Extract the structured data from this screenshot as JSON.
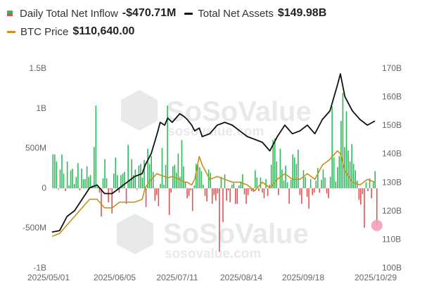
{
  "legend": {
    "inflow_label": "Daily Total Net Inflow",
    "inflow_value": "-$470.71M",
    "assets_label": "Total Net Assets",
    "assets_value": "$149.98B",
    "btc_label": "BTC Price",
    "btc_value": "$110,640.00"
  },
  "watermark": {
    "brand": "SoSoValue",
    "site": "sosovalue.com"
  },
  "colors": {
    "inflow_pos": "#2fb85a",
    "inflow_neg": "#e0504f",
    "assets": "#111111",
    "btc": "#c8901a",
    "highlight": "#f4a0b8"
  },
  "chart_data": {
    "type": "bar",
    "title": "",
    "xlabel": "",
    "ylabel": "",
    "x_ticks": [
      "2025/05/01",
      "2025/06/05",
      "2025/07/11",
      "2025/08/14",
      "2025/09/18",
      "2025/10/29"
    ],
    "left_ticks": [
      "1.5B",
      "1B",
      "500M",
      "0",
      "-500M",
      "-1B"
    ],
    "right_ticks": [
      "170B",
      "160B",
      "150B",
      "140B",
      "130B",
      "120B",
      "110B",
      "100B"
    ],
    "left_axis": {
      "min": -1000000000,
      "max": 1500000000,
      "unit": "USD"
    },
    "right_axis": {
      "min": 100000000000,
      "max": 170000000000,
      "unit": "USD"
    },
    "grid": false,
    "legend_position": "top-left",
    "series": [
      {
        "name": "Daily Total Net Inflow",
        "kind": "bar",
        "axis": "left",
        "unit": "M USD",
        "values": [
          420,
          420,
          330,
          -20,
          230,
          420,
          180,
          -40,
          330,
          30,
          220,
          240,
          50,
          140,
          310,
          -30,
          240,
          110,
          110,
          270,
          140,
          160,
          30,
          510,
          1030,
          10,
          -60,
          -360,
          120,
          360,
          120,
          -180,
          -20,
          -320,
          180,
          380,
          160,
          -60,
          160,
          180,
          200,
          -200,
          540,
          110,
          360,
          160,
          230,
          -20,
          280,
          300,
          130,
          350,
          -240,
          490,
          300,
          400,
          200,
          -160,
          -90,
          -230,
          50,
          500,
          40,
          290,
          1030,
          -340,
          -60,
          270,
          290,
          190,
          430,
          140,
          600,
          270,
          80,
          -130,
          -100,
          -30,
          -290,
          30,
          300,
          290,
          260,
          210,
          40,
          -100,
          -170,
          230,
          190,
          -200,
          -90,
          -160,
          -70,
          -800,
          140,
          -430,
          170,
          -160,
          -30,
          -180,
          40,
          60,
          -200,
          -200,
          30,
          80,
          170,
          -80,
          -200,
          -90,
          -20,
          -40,
          -50,
          220,
          130,
          -40,
          130,
          -60,
          -130,
          110,
          -100,
          40,
          290,
          600,
          620,
          330,
          -90,
          490,
          230,
          90,
          280,
          70,
          -200,
          100,
          420,
          380,
          300,
          480,
          -90,
          -200,
          220,
          140,
          -110,
          -260,
          110,
          -90,
          -60,
          90,
          250,
          -60,
          100,
          230,
          130,
          -70,
          -130,
          140,
          1020,
          380,
          80,
          260,
          400,
          840,
          1190,
          510,
          960,
          470,
          330,
          550,
          300,
          220,
          90,
          -150,
          -210,
          -80,
          -500,
          70,
          -40,
          120,
          -130,
          70,
          210,
          -470
        ]
      },
      {
        "name": "Total Net Assets",
        "kind": "line",
        "axis": "right",
        "unit": "B USD",
        "x": [
          0,
          5,
          10,
          15,
          20,
          25,
          30,
          35,
          40,
          45,
          50,
          55,
          60,
          62,
          66,
          70,
          72,
          75,
          77,
          80,
          85,
          88,
          90,
          93,
          95,
          98,
          100,
          105,
          110,
          115,
          120,
          125,
          130,
          135,
          140,
          145,
          150,
          155,
          160,
          165,
          170,
          175,
          180,
          185,
          190,
          192,
          195,
          200,
          205,
          210,
          215
        ],
        "values": [
          112.5,
          113,
          118,
          120,
          124,
          128,
          129,
          126,
          126,
          128,
          130,
          132,
          133,
          136,
          140,
          147,
          151,
          150,
          152.5,
          151,
          154,
          153,
          152,
          150,
          148,
          149,
          146,
          147,
          150,
          151,
          150,
          148,
          146,
          145,
          144,
          141,
          146,
          150,
          147,
          148,
          150,
          147,
          152,
          155,
          164,
          168,
          160,
          155,
          152,
          150,
          151.5
        ]
      },
      {
        "name": "BTC Price",
        "kind": "line",
        "axis": "right",
        "unit": "B USD (scaled)",
        "x": [
          0,
          5,
          10,
          15,
          20,
          25,
          30,
          35,
          40,
          45,
          50,
          55,
          60,
          62,
          66,
          70,
          72,
          75,
          77,
          80,
          85,
          88,
          90,
          93,
          95,
          98,
          100,
          105,
          110,
          115,
          120,
          125,
          130,
          135,
          140,
          145,
          150,
          155,
          160,
          165,
          170,
          175,
          180,
          185,
          190,
          192,
          195,
          200,
          205,
          210,
          215
        ],
        "values": [
          111,
          112,
          115,
          118,
          121,
          124,
          124,
          121,
          121,
          123,
          123,
          123,
          124,
          128,
          131,
          133,
          132.5,
          132,
          131.5,
          132,
          131,
          130,
          130,
          129,
          131,
          139,
          136,
          131,
          132,
          131,
          130,
          130,
          129,
          127,
          130,
          128,
          131,
          133,
          131,
          131,
          133,
          131,
          136,
          138,
          141,
          140,
          134,
          130,
          129,
          131,
          130
        ]
      }
    ],
    "highlight_point": {
      "series": "Daily Total Net Inflow",
      "value": -470.71,
      "unit": "M USD"
    }
  }
}
